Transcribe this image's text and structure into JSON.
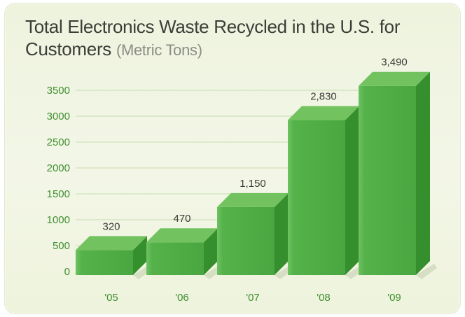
{
  "title_main": "Total Electronics Waste Recycled in the U.S. for Customers",
  "title_unit": "(Metric Tons)",
  "colors": {
    "bar_front": "#55b24a",
    "bar_top": "#72c35f",
    "bar_side": "#348f2c",
    "tick_text": "#3f8f30",
    "gridline": "#c8dcb0",
    "panel_background": "#eef3de"
  },
  "chart_data": {
    "type": "bar",
    "categories": [
      "'05",
      "'06",
      "'07",
      "'08",
      "'09"
    ],
    "values": [
      320,
      470,
      1150,
      2830,
      3490
    ],
    "value_labels": [
      "320",
      "470",
      "1,150",
      "2,830",
      "3,490"
    ],
    "yticks": [
      "0",
      "500",
      "1000",
      "1500",
      "2000",
      "2500",
      "3000",
      "3500"
    ],
    "ylim": [
      0,
      3500
    ],
    "grid": true,
    "style": "3d",
    "legend": "none"
  }
}
